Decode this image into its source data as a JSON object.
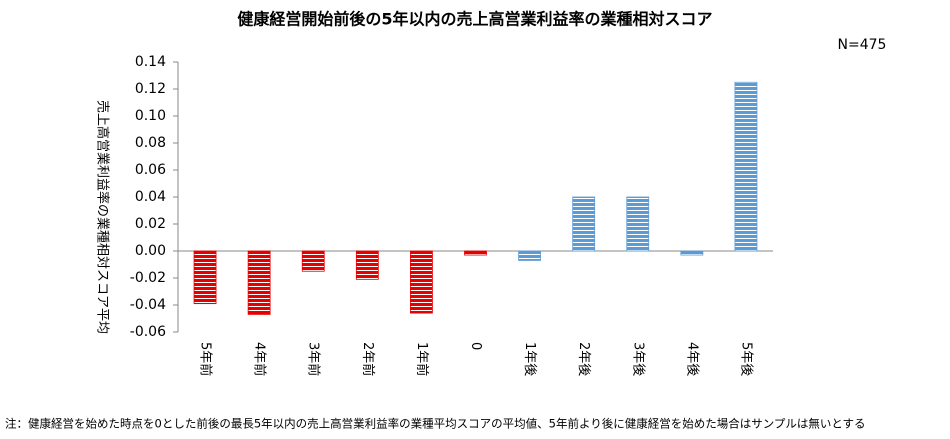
{
  "chart_data": {
    "type": "bar",
    "title": "健康経営開始前後の5年以内の売上高営業利益率の業種相対スコア",
    "subtitle": "N=475",
    "y_label": "売上高営業利益率の業種相対スコア平均",
    "note": "注：健康経営を始めた時点を0とした前後の最長5年以内の売上高営業利益率の業種平均スコアの平均値、5年前より後に健康経営を始めた場合はサンプルは無いとする",
    "categories": [
      "5年前",
      "4年前",
      "3年前",
      "2年前",
      "1年前",
      "0",
      "1年後",
      "2年後",
      "3年後",
      "4年後",
      "5年後"
    ],
    "values": [
      -0.039,
      -0.047,
      -0.015,
      -0.021,
      -0.046,
      -0.003,
      -0.007,
      0.04,
      0.04,
      -0.003,
      0.125
    ],
    "colors": [
      "#e60000",
      "#e60000",
      "#e60000",
      "#e60000",
      "#e60000",
      "#e60000",
      "#5b9bd5",
      "#5b9bd5",
      "#5b9bd5",
      "#5b9bd5",
      "#5b9bd5"
    ],
    "ylim": [
      -0.06,
      0.14
    ],
    "yticks": [
      -0.06,
      -0.04,
      -0.02,
      {
        "value": 0,
        "label": "0.00"
      },
      0.02,
      0.04,
      0.06,
      0.08,
      {
        "value": 0.1,
        "label": "0.10"
      },
      0.12,
      0.14
    ],
    "grid": false
  }
}
